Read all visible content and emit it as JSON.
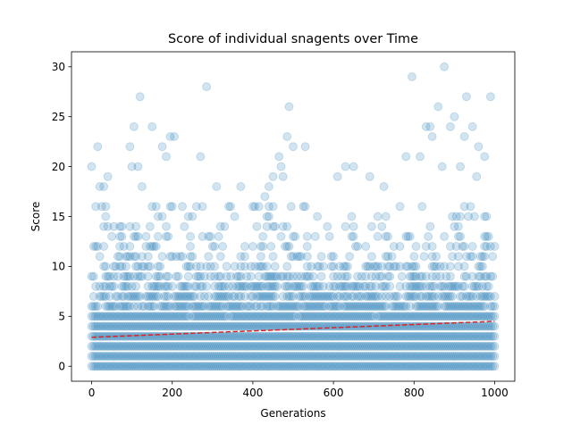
{
  "chart_data": {
    "type": "scatter",
    "title": "Score of individual snagents over Time",
    "xlabel": "Generations",
    "ylabel": "Score",
    "xlim": [
      -50,
      1050
    ],
    "ylim": [
      -1.5,
      31.5
    ],
    "xticks": [
      0,
      200,
      400,
      600,
      800,
      1000
    ],
    "yticks": [
      0,
      5,
      10,
      15,
      20,
      25,
      30
    ],
    "xtick_labels": [
      "0",
      "200",
      "400",
      "600",
      "800",
      "1000"
    ],
    "ytick_labels": [
      "0",
      "5",
      "10",
      "15",
      "20",
      "25",
      "30"
    ],
    "grid": false,
    "point_color": "#1f77b4",
    "point_alpha": 0.2,
    "trend_color": "#d62728",
    "trend_line": {
      "x": [
        0,
        1000
      ],
      "y": [
        2.9,
        4.5
      ]
    },
    "series": [
      {
        "values_summary": {
          "generations": [
            0,
            1000
          ],
          "dense_score_range": [
            0,
            7
          ],
          "sparse_score_range": [
            8,
            16
          ]
        },
        "outliers": [
          [
            0,
            20
          ],
          [
            15,
            22
          ],
          [
            10,
            16
          ],
          [
            20,
            18
          ],
          [
            30,
            18
          ],
          [
            40,
            19
          ],
          [
            95,
            22
          ],
          [
            100,
            20
          ],
          [
            105,
            24
          ],
          [
            115,
            20
          ],
          [
            120,
            27
          ],
          [
            125,
            18
          ],
          [
            150,
            24
          ],
          [
            175,
            22
          ],
          [
            185,
            21
          ],
          [
            195,
            23
          ],
          [
            205,
            23
          ],
          [
            270,
            21
          ],
          [
            285,
            28
          ],
          [
            310,
            18
          ],
          [
            370,
            18
          ],
          [
            430,
            17
          ],
          [
            440,
            18
          ],
          [
            450,
            19
          ],
          [
            465,
            21
          ],
          [
            470,
            20
          ],
          [
            475,
            19
          ],
          [
            485,
            23
          ],
          [
            490,
            26
          ],
          [
            500,
            22
          ],
          [
            530,
            22
          ],
          [
            560,
            15
          ],
          [
            610,
            19
          ],
          [
            630,
            20
          ],
          [
            650,
            20
          ],
          [
            690,
            19
          ],
          [
            725,
            18
          ],
          [
            780,
            21
          ],
          [
            795,
            29
          ],
          [
            815,
            21
          ],
          [
            830,
            24
          ],
          [
            840,
            24
          ],
          [
            845,
            23
          ],
          [
            860,
            26
          ],
          [
            870,
            20
          ],
          [
            875,
            30
          ],
          [
            890,
            24
          ],
          [
            900,
            25
          ],
          [
            915,
            20
          ],
          [
            925,
            23
          ],
          [
            930,
            27
          ],
          [
            945,
            24
          ],
          [
            955,
            19
          ],
          [
            960,
            22
          ],
          [
            975,
            21
          ],
          [
            990,
            27
          ]
        ]
      }
    ]
  }
}
